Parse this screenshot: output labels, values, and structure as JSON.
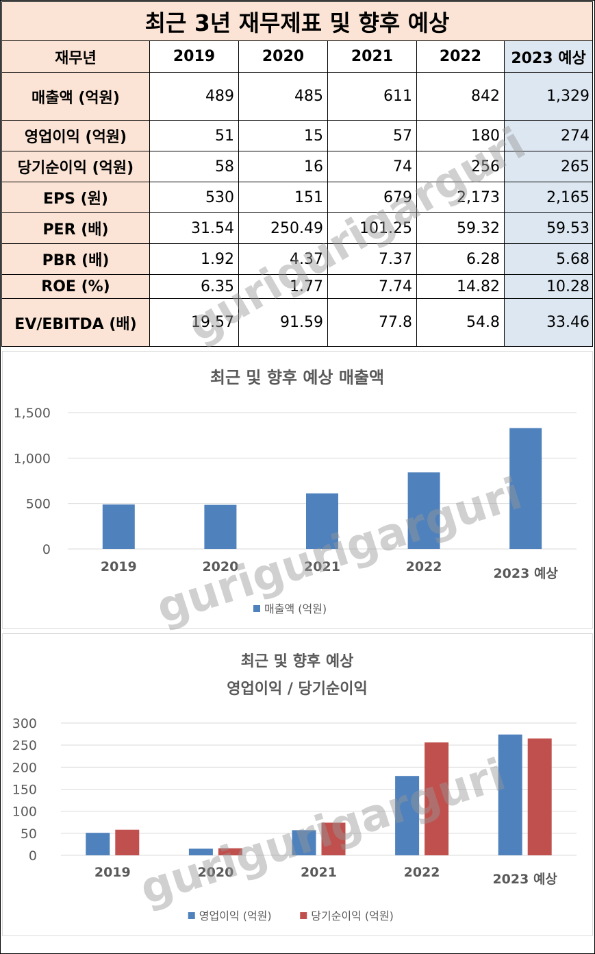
{
  "table": {
    "title": "최근 3년 재무제표 및 향후 예상",
    "header": [
      "재무년",
      "2019",
      "2020",
      "2021",
      "2022",
      "2023 예상"
    ],
    "rows": [
      {
        "label": "매출액 (억원)",
        "values": [
          "489",
          "485",
          "611",
          "842",
          "1,329"
        ]
      },
      {
        "label": "영업이익 (억원)",
        "values": [
          "51",
          "15",
          "57",
          "180",
          "274"
        ]
      },
      {
        "label": "당기순이익 (억원)",
        "values": [
          "58",
          "16",
          "74",
          "256",
          "265"
        ]
      },
      {
        "label": "EPS (원)",
        "values": [
          "530",
          "151",
          "679",
          "2,173",
          "2,165"
        ]
      },
      {
        "label": "PER (배)",
        "values": [
          "31.54",
          "250.49",
          "101.25",
          "59.32",
          "59.53"
        ]
      },
      {
        "label": "PBR (배)",
        "values": [
          "1.92",
          "4.37",
          "7.37",
          "6.28",
          "5.68"
        ]
      },
      {
        "label": "ROE (%)",
        "values": [
          "6.35",
          "1.77",
          "7.74",
          "14.82",
          "10.28"
        ]
      },
      {
        "label": "EV/EBITDA (배)",
        "values": [
          "19.57",
          "91.59",
          "77.8",
          "54.8",
          "33.46"
        ]
      }
    ]
  },
  "watermark": "gurigurigarguri",
  "chart_data": [
    {
      "type": "bar",
      "title": "최근 및 향후 예상 매출액",
      "categories": [
        "2019",
        "2020",
        "2021",
        "2022",
        "2023 예상"
      ],
      "series": [
        {
          "name": "매출액 (억원)",
          "values": [
            489,
            485,
            611,
            842,
            1329
          ],
          "color": "#4f81bd"
        }
      ],
      "ylim": [
        0,
        1500
      ],
      "yticks": [
        0,
        500,
        1000,
        1500
      ],
      "ytick_labels": [
        "0",
        "500",
        "1,000",
        "1,500"
      ],
      "grid": true,
      "legend": "bottom"
    },
    {
      "type": "bar",
      "title": [
        "최근 및 향후 예상",
        "영업이익 / 당기순이익"
      ],
      "categories": [
        "2019",
        "2020",
        "2021",
        "2022",
        "2023 예상"
      ],
      "series": [
        {
          "name": "영업이익 (억원)",
          "values": [
            51,
            15,
            57,
            180,
            274
          ],
          "color": "#4f81bd"
        },
        {
          "name": "당기순이익 (억원)",
          "values": [
            58,
            16,
            74,
            256,
            265
          ],
          "color": "#c0504d"
        }
      ],
      "ylim": [
        0,
        300
      ],
      "yticks": [
        0,
        50,
        100,
        150,
        200,
        250,
        300
      ],
      "ytick_labels": [
        "0",
        "50",
        "100",
        "150",
        "200",
        "250",
        "300"
      ],
      "grid": true,
      "legend": "bottom"
    }
  ]
}
